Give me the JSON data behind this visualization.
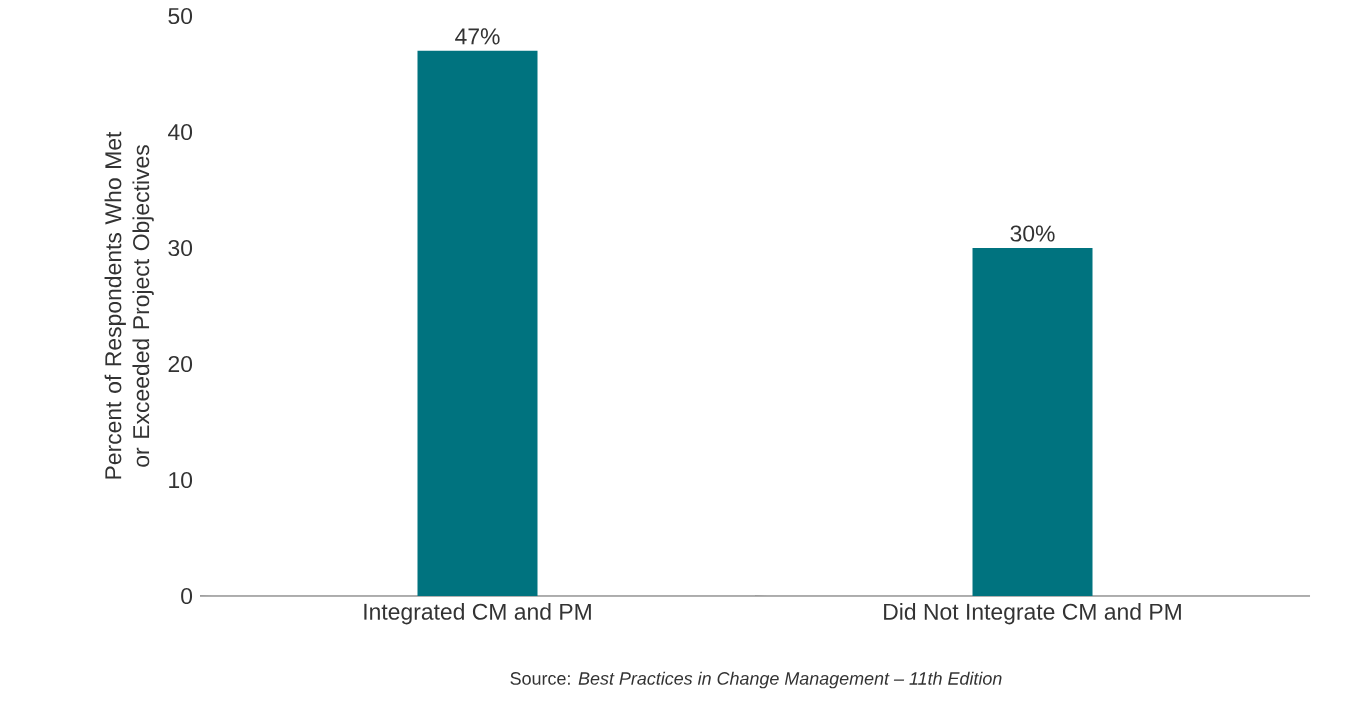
{
  "chart_data": {
    "type": "bar",
    "categories": [
      "Integrated CM and PM",
      "Did Not Integrate CM and PM"
    ],
    "values": [
      47,
      30
    ],
    "value_labels": [
      "47%",
      "30%"
    ],
    "color": "#00737f",
    "ylabel": "Percent of Respondents Who Met or Exceeded Project Objectives",
    "ylim": [
      0,
      50
    ],
    "yticks": [
      0,
      10,
      20,
      30,
      40,
      50
    ],
    "annotations": [
      "Source: *Best Practices in Change Management – 11th Edition*"
    ]
  }
}
